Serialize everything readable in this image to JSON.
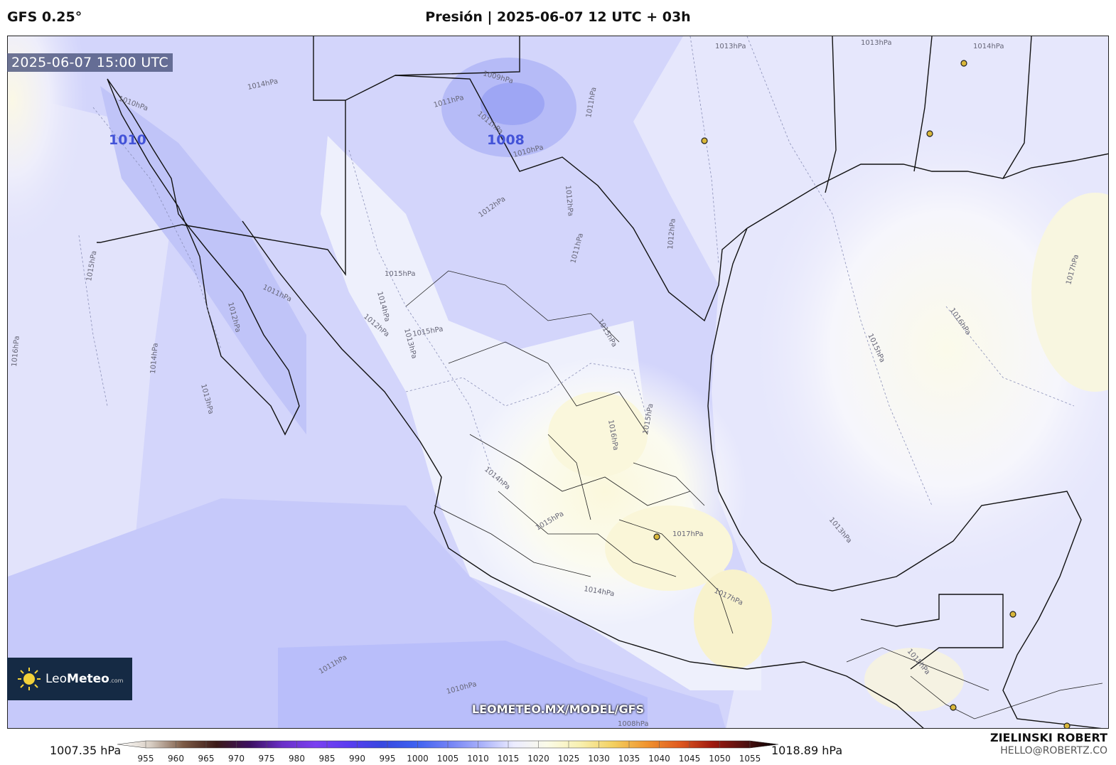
{
  "header": {
    "model": "GFS 0.25°",
    "title": "Presión | 2025-06-07 12 UTC + 03h"
  },
  "map": {
    "valid_time": "2025-06-07 15:00 UTC",
    "low_labels": [
      "1010",
      "1008"
    ],
    "contour_labels": [
      "1008hPa",
      "1010hPa",
      "1011hPa",
      "1012hPa",
      "1013hPa",
      "1014hPa",
      "1015hPa",
      "1016hPa",
      "1017hPa"
    ],
    "watermark": "LEOMETEO.MX/MODEL/GFS"
  },
  "logo": {
    "name_light": "Leo",
    "name_bold": "Meteo",
    "suffix": ".com"
  },
  "legend": {
    "min_label": "1007.35 hPa",
    "max_label": "1018.89 hPa",
    "ticks": [
      "955",
      "960",
      "965",
      "970",
      "975",
      "980",
      "985",
      "990",
      "995",
      "1000",
      "1005",
      "1010",
      "1015",
      "1020",
      "1025",
      "1030",
      "1035",
      "1040",
      "1045",
      "1050",
      "1055"
    ],
    "colors": [
      "#ffffff",
      "#d9cfc5",
      "#7c5a45",
      "#3b1a18",
      "#3c1060",
      "#6a30c8",
      "#7a40f0",
      "#5a3cf0",
      "#3848e0",
      "#3d60f0",
      "#7080f5",
      "#a8b0fa",
      "#ececff",
      "#fbfbe8",
      "#f8f0b0",
      "#f3d060",
      "#f09530",
      "#e05a20",
      "#a01a10",
      "#501010",
      "#000000"
    ]
  },
  "credit": {
    "name": "ZIELINSKI ROBERT",
    "email": "HELLO@ROBERTZ.CO"
  }
}
